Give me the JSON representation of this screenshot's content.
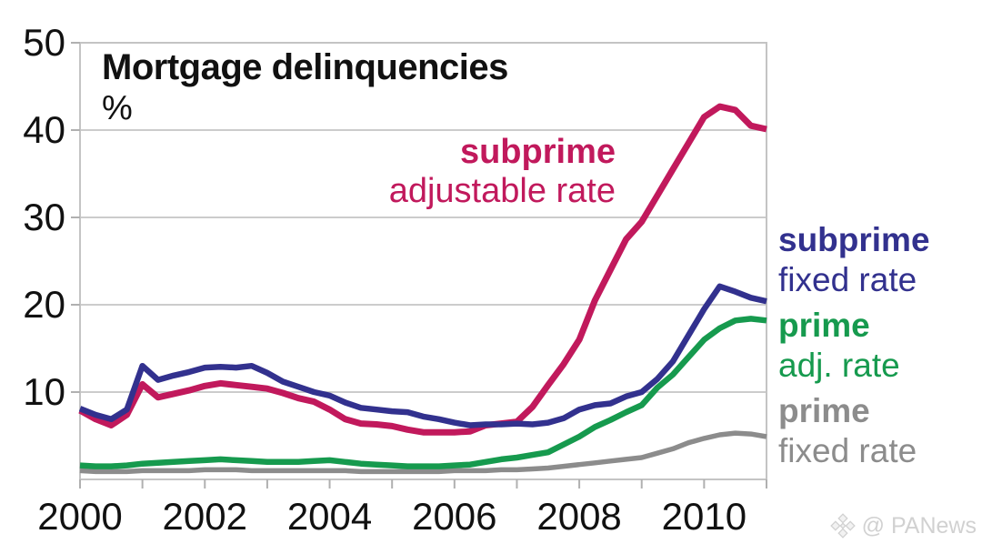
{
  "header": {
    "title": "Mortgage delinquencies",
    "unit": "%"
  },
  "watermark": {
    "text": "@ PANews",
    "icon": "four-diamonds-logo"
  },
  "chart_data": {
    "type": "line",
    "title": "Mortgage delinquencies",
    "ylabel": "%",
    "xlabel": "",
    "x_start": 2000,
    "x_step": 0.25,
    "xlim": [
      2000,
      2011
    ],
    "ylim": [
      0,
      50
    ],
    "yticks": [
      10,
      20,
      30,
      40,
      50
    ],
    "ytick_labels": [
      "10",
      "20",
      "30",
      "40",
      "50"
    ],
    "xticks_labeled": [
      2000,
      2002,
      2004,
      2006,
      2008,
      2010
    ],
    "xtick_labels": [
      "2000",
      "2002",
      "2004",
      "2006",
      "2008",
      "2010"
    ],
    "xtick_minor_every": 1,
    "grid": "horizontal",
    "legend_position": "right-and-inline",
    "series": [
      {
        "name": "prime fixed rate",
        "label_bold": "prime",
        "label_regular": "fixed rate",
        "color": "#8c8c8c",
        "values": [
          1.0,
          0.9,
          0.9,
          0.9,
          1.0,
          1.0,
          1.0,
          1.0,
          1.1,
          1.1,
          1.1,
          1.0,
          1.0,
          1.0,
          1.0,
          1.0,
          1.0,
          1.0,
          0.9,
          0.9,
          0.9,
          0.9,
          0.9,
          0.9,
          1.0,
          1.0,
          1.0,
          1.1,
          1.1,
          1.2,
          1.3,
          1.5,
          1.7,
          1.9,
          2.1,
          2.3,
          2.5,
          3.0,
          3.5,
          4.2,
          4.7,
          5.1,
          5.3,
          5.2,
          4.9
        ]
      },
      {
        "name": "prime adjustable rate",
        "label_bold": "prime",
        "label_regular": "adj. rate",
        "color": "#169a4e",
        "values": [
          1.6,
          1.5,
          1.5,
          1.6,
          1.8,
          1.9,
          2.0,
          2.1,
          2.2,
          2.3,
          2.2,
          2.1,
          2.0,
          2.0,
          2.0,
          2.1,
          2.2,
          2.0,
          1.8,
          1.7,
          1.6,
          1.5,
          1.5,
          1.5,
          1.6,
          1.7,
          2.0,
          2.3,
          2.5,
          2.8,
          3.1,
          4.0,
          4.9,
          6.0,
          6.8,
          7.7,
          8.5,
          10.5,
          12.0,
          14.0,
          16.0,
          17.3,
          18.2,
          18.4,
          18.2
        ]
      },
      {
        "name": "subprime adjustable rate",
        "label_bold": "subprime",
        "label_regular": "adjustable rate",
        "color": "#c1195c",
        "values": [
          7.9,
          6.9,
          6.2,
          7.4,
          10.9,
          9.4,
          9.8,
          10.2,
          10.7,
          11.0,
          10.8,
          10.6,
          10.4,
          9.9,
          9.3,
          8.9,
          8.0,
          6.9,
          6.4,
          6.3,
          6.1,
          5.7,
          5.4,
          5.4,
          5.4,
          5.5,
          6.2,
          6.4,
          6.6,
          8.3,
          10.8,
          13.2,
          16.0,
          20.5,
          24.0,
          27.5,
          29.5,
          32.5,
          35.5,
          38.5,
          41.5,
          42.7,
          42.3,
          40.5,
          40.1
        ]
      },
      {
        "name": "subprime fixed rate",
        "label_bold": "subprime",
        "label_regular": "fixed rate",
        "color": "#32318e",
        "values": [
          8.1,
          7.4,
          6.9,
          8.0,
          13.0,
          11.4,
          11.9,
          12.3,
          12.8,
          12.9,
          12.8,
          13.0,
          12.2,
          11.2,
          10.6,
          10.0,
          9.6,
          8.8,
          8.2,
          8.0,
          7.8,
          7.7,
          7.2,
          6.9,
          6.5,
          6.2,
          6.3,
          6.3,
          6.4,
          6.3,
          6.5,
          7.0,
          8.0,
          8.5,
          8.7,
          9.5,
          10.0,
          11.5,
          13.5,
          16.5,
          19.5,
          22.1,
          21.5,
          20.8,
          20.4
        ]
      }
    ]
  }
}
